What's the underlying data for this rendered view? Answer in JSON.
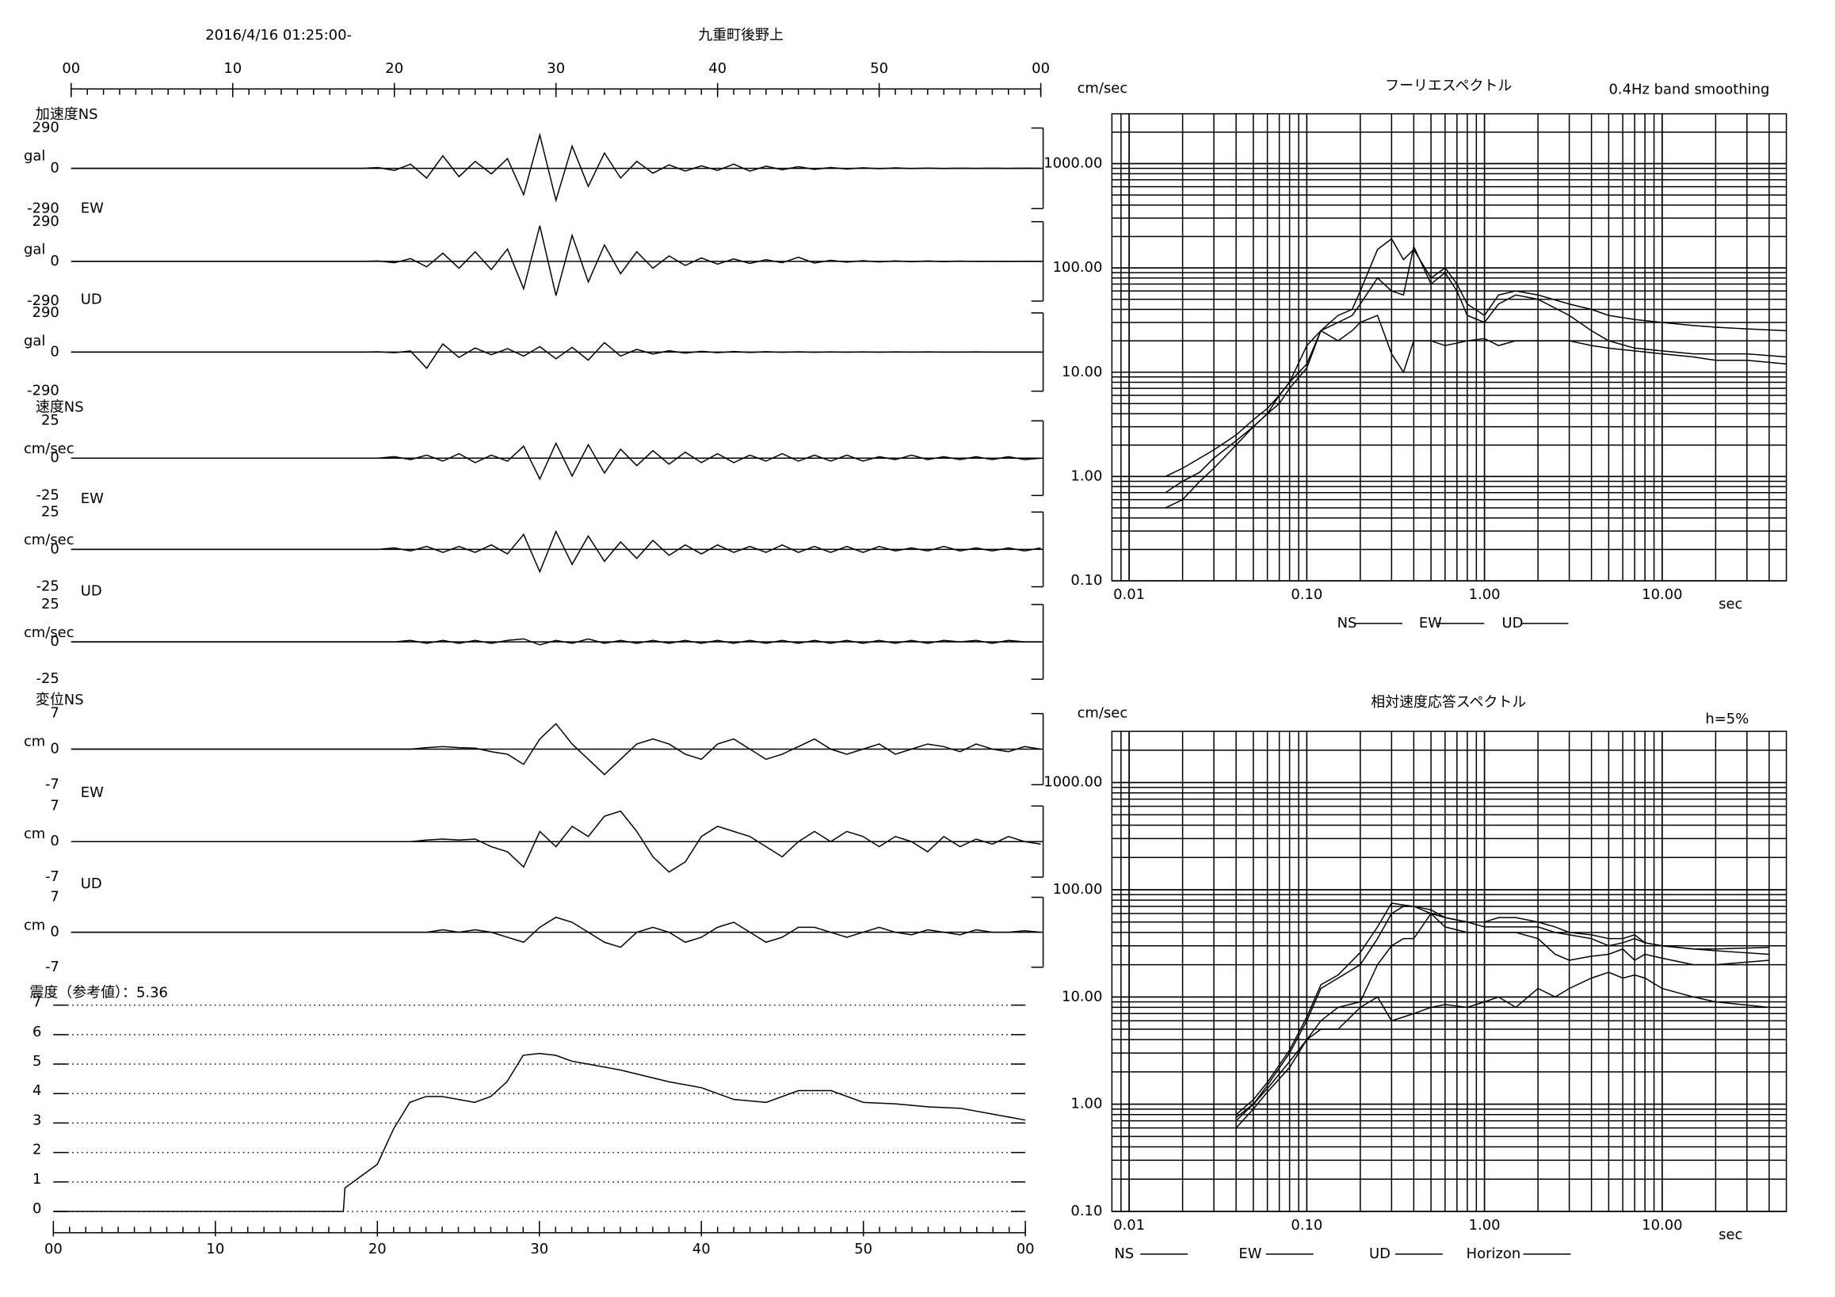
{
  "chart_data": [
    {
      "type": "waveform",
      "title": "九重町後野上",
      "start_time": "2016/4/16 01:25:00-",
      "xlim": [
        0,
        60
      ],
      "xticks": [
        {
          "value": 0,
          "label": "00"
        },
        10,
        20,
        30,
        40,
        50,
        {
          "value": 60,
          "label": "00"
        }
      ],
      "x": [
        0,
        18,
        19,
        20,
        21,
        22,
        23,
        24,
        25,
        26,
        27,
        28,
        29,
        30,
        31,
        32,
        33,
        34,
        35,
        36,
        37,
        38,
        39,
        40,
        41,
        42,
        43,
        44,
        45,
        46,
        47,
        48,
        49,
        50,
        51,
        52,
        53,
        54,
        55,
        56,
        57,
        58,
        59,
        60
      ],
      "traces": [
        {
          "label": "加速度NS",
          "unit": "gal",
          "ylim": [
            -290,
            290
          ],
          "yticks": [
            290,
            0,
            -290
          ],
          "values": [
            0,
            0,
            5,
            -15,
            30,
            -70,
            90,
            -60,
            50,
            -40,
            70,
            -190,
            240,
            -230,
            160,
            -130,
            110,
            -70,
            50,
            -35,
            25,
            -20,
            18,
            -15,
            30,
            -20,
            15,
            -10,
            12,
            -8,
            6,
            -5,
            4,
            -3,
            3,
            -2,
            2,
            -2,
            1,
            -1,
            1,
            -1,
            1,
            0
          ]
        },
        {
          "label": "EW",
          "unit": "gal",
          "ylim": [
            -290,
            290
          ],
          "yticks": [
            290,
            0,
            -290
          ],
          "values": [
            0,
            0,
            3,
            -10,
            20,
            -40,
            60,
            -50,
            70,
            -60,
            90,
            -200,
            260,
            -250,
            190,
            -150,
            120,
            -90,
            70,
            -50,
            40,
            -30,
            25,
            -20,
            18,
            -15,
            12,
            -10,
            30,
            -12,
            8,
            -6,
            5,
            -4,
            4,
            -3,
            3,
            -2,
            2,
            -1,
            1,
            -1,
            1,
            0
          ]
        },
        {
          "label": "UD",
          "unit": "gal",
          "ylim": [
            -290,
            290
          ],
          "yticks": [
            290,
            0,
            -290
          ],
          "values": [
            0,
            0,
            2,
            -5,
            8,
            -120,
            60,
            -40,
            30,
            -20,
            25,
            -30,
            40,
            -50,
            35,
            -60,
            70,
            -30,
            20,
            -15,
            10,
            -8,
            6,
            -5,
            4,
            -3,
            3,
            -2,
            2,
            -2,
            1,
            -1,
            1,
            -1,
            1,
            0,
            1,
            0,
            0,
            1,
            0,
            0,
            0,
            0
          ]
        },
        {
          "label": "速度NS",
          "unit": "cm/sec",
          "ylim": [
            -25,
            25
          ],
          "yticks": [
            25,
            0,
            -25
          ],
          "values": [
            0,
            0,
            0,
            1,
            -1,
            2,
            -2,
            3,
            -3,
            2,
            -2,
            8,
            -14,
            10,
            -12,
            9,
            -10,
            6,
            -5,
            5,
            -4,
            4,
            -3,
            3,
            -3,
            2,
            -2,
            3,
            -2,
            2,
            -2,
            2,
            -2,
            1,
            -1,
            2,
            -1,
            1,
            -1,
            1,
            -1,
            1,
            -1,
            0
          ]
        },
        {
          "label": "EW",
          "unit": "cm/sec",
          "ylim": [
            -25,
            25
          ],
          "yticks": [
            25,
            0,
            -25
          ],
          "values": [
            0,
            0,
            0,
            1,
            -1,
            2,
            -2,
            2,
            -2,
            3,
            -3,
            10,
            -15,
            12,
            -10,
            9,
            -8,
            5,
            -6,
            6,
            -4,
            3,
            -3,
            3,
            -2,
            2,
            -2,
            3,
            -2,
            2,
            -2,
            2,
            -2,
            2,
            -1,
            1,
            -1,
            2,
            -1,
            1,
            -1,
            1,
            -1,
            1
          ]
        },
        {
          "label": "UD",
          "unit": "cm/sec",
          "ylim": [
            -25,
            25
          ],
          "yticks": [
            25,
            0,
            -25
          ],
          "values": [
            0,
            0,
            0,
            0,
            1,
            -1,
            1,
            -1,
            1,
            -1,
            1,
            2,
            -2,
            1,
            -1,
            2,
            -1,
            1,
            -1,
            1,
            -1,
            1,
            -1,
            1,
            -1,
            1,
            -1,
            1,
            -1,
            1,
            -1,
            1,
            -1,
            1,
            -1,
            1,
            -1,
            1,
            0,
            1,
            -1,
            1,
            0,
            0
          ]
        },
        {
          "label": "変位NS",
          "unit": "cm",
          "ylim": [
            -7,
            7
          ],
          "yticks": [
            7,
            0,
            -7
          ],
          "values": [
            0,
            0,
            0,
            0,
            0,
            0.3,
            0.5,
            0.3,
            0.2,
            -0.5,
            -1,
            -3,
            2,
            5,
            1,
            -2,
            -5,
            -2,
            1,
            2,
            1,
            -1,
            -2,
            1,
            2,
            0,
            -2,
            -1,
            0.5,
            2,
            0,
            -1,
            0,
            1,
            -1,
            0,
            1,
            0.5,
            -0.5,
            1,
            0,
            -0.5,
            0.5,
            0
          ]
        },
        {
          "label": "EW",
          "unit": "cm",
          "ylim": [
            -7,
            7
          ],
          "yticks": [
            7,
            0,
            -7
          ],
          "values": [
            0,
            0,
            0,
            0,
            0,
            0.3,
            0.5,
            0.3,
            0.5,
            -1,
            -2,
            -5,
            2,
            -1,
            3,
            1,
            5,
            6,
            2,
            -3,
            -6,
            -4,
            1,
            3,
            2,
            1,
            -1,
            -3,
            0,
            2,
            0,
            2,
            1,
            -1,
            1,
            0,
            -2,
            1,
            -1,
            0.5,
            -0.5,
            1,
            0,
            -0.5
          ]
        },
        {
          "label": "UD",
          "unit": "cm",
          "ylim": [
            -7,
            7
          ],
          "yticks": [
            7,
            0,
            -7
          ],
          "values": [
            0,
            0,
            0,
            0,
            0,
            0,
            0.5,
            0,
            0.5,
            0,
            -1,
            -2,
            1,
            3,
            2,
            0,
            -2,
            -3,
            0,
            1,
            0,
            -2,
            -1,
            1,
            2,
            0,
            -2,
            -1,
            1,
            1,
            0,
            -1,
            0,
            1,
            0,
            -0.5,
            0.5,
            0,
            -0.5,
            0.5,
            0,
            0,
            0.3,
            0
          ]
        }
      ]
    },
    {
      "type": "line",
      "title": "震度（参考値）：5.36",
      "color": "#000000",
      "xlim": [
        0,
        60
      ],
      "xticks": [
        {
          "value": 0,
          "label": "00"
        },
        10,
        20,
        30,
        40,
        50,
        {
          "value": 60,
          "label": "00"
        }
      ],
      "ylim": [
        0,
        7
      ],
      "yticks": [
        0,
        1,
        2,
        3,
        4,
        5,
        6,
        7
      ],
      "grid": true,
      "x": [
        0,
        17.9,
        18,
        19,
        20,
        21,
        22,
        23,
        24,
        25,
        26,
        27,
        28,
        29,
        30,
        31,
        32,
        33,
        35,
        38,
        40,
        42,
        44,
        46,
        48,
        50,
        52,
        54,
        56,
        58,
        60
      ],
      "values": [
        0,
        0,
        0.8,
        1.2,
        1.6,
        2.8,
        3.7,
        3.9,
        3.9,
        3.8,
        3.7,
        3.9,
        4.4,
        5.3,
        5.36,
        5.3,
        5.1,
        5.0,
        4.8,
        4.4,
        4.2,
        3.8,
        3.7,
        4.1,
        4.1,
        3.7,
        3.65,
        3.55,
        3.5,
        3.3,
        3.1
      ]
    },
    {
      "type": "loglog",
      "title": "フーリエスペクトル",
      "subtitle": "0.4Hz band smoothing",
      "ylabel": "cm/sec",
      "xlabel": "sec",
      "xlim": [
        0.008,
        50
      ],
      "ylim": [
        0.1,
        3000
      ],
      "minor_grid": true,
      "xticks": [
        {
          "value": 0.01,
          "label": "0.01"
        },
        {
          "value": 0.1,
          "label": "0.10"
        },
        {
          "value": 1,
          "label": "1.00"
        },
        {
          "value": 10,
          "label": "10.00"
        }
      ],
      "yticks": [
        {
          "value": 0.1,
          "label": "0.10"
        },
        {
          "value": 1,
          "label": "1.00"
        },
        {
          "value": 10,
          "label": "10.00"
        },
        {
          "value": 100,
          "label": "100.00"
        },
        {
          "value": 1000,
          "label": "1000.00"
        }
      ],
      "x": [
        0.016,
        0.02,
        0.025,
        0.03,
        0.04,
        0.05,
        0.06,
        0.07,
        0.08,
        0.1,
        0.12,
        0.15,
        0.18,
        0.2,
        0.25,
        0.3,
        0.35,
        0.4,
        0.5,
        0.6,
        0.7,
        0.8,
        1,
        1.2,
        1.5,
        2,
        3,
        4,
        5,
        7,
        10,
        15,
        20,
        30,
        50
      ],
      "series": [
        {
          "name": "NS",
          "color": "#ff0000",
          "values": [
            1.0,
            1.2,
            1.5,
            1.8,
            2.5,
            3.5,
            4.5,
            6,
            8,
            12,
            25,
            30,
            35,
            45,
            80,
            60,
            55,
            160,
            70,
            90,
            60,
            35,
            30,
            45,
            55,
            50,
            35,
            25,
            20,
            17,
            16,
            15,
            15,
            15,
            14
          ]
        },
        {
          "name": "EW",
          "color": "#00b400",
          "values": [
            0.5,
            0.6,
            0.9,
            1.2,
            2,
            3,
            4,
            5,
            7,
            11,
            25,
            35,
            40,
            60,
            150,
            190,
            120,
            150,
            80,
            100,
            70,
            45,
            35,
            55,
            60,
            55,
            45,
            40,
            35,
            32,
            30,
            28,
            27,
            26,
            25
          ]
        },
        {
          "name": "UD",
          "color": "#0a7cff",
          "values": [
            0.7,
            0.9,
            1.1,
            1.5,
            2.2,
            3,
            4,
            6,
            8,
            18,
            25,
            20,
            25,
            30,
            35,
            15,
            10,
            20,
            20,
            18,
            19,
            20,
            21,
            18,
            20,
            20,
            20,
            18,
            17,
            16,
            15,
            14,
            13,
            13,
            12
          ]
        }
      ]
    },
    {
      "type": "loglog",
      "title": "相対速度応答スペクトル",
      "subtitle": "h=5%",
      "ylabel": "cm/sec",
      "xlabel": "sec",
      "xlim": [
        0.008,
        50
      ],
      "ylim": [
        0.1,
        3000
      ],
      "minor_grid": true,
      "xticks": [
        {
          "value": 0.01,
          "label": "0.01"
        },
        {
          "value": 0.1,
          "label": "0.10"
        },
        {
          "value": 1,
          "label": "1.00"
        },
        {
          "value": 10,
          "label": "10.00"
        }
      ],
      "yticks": [
        {
          "value": 0.1,
          "label": "0.10"
        },
        {
          "value": 1,
          "label": "1.00"
        },
        {
          "value": 10,
          "label": "10.00"
        },
        {
          "value": 100,
          "label": "100.00"
        },
        {
          "value": 1000,
          "label": "1000.00"
        }
      ],
      "x": [
        0.04,
        0.05,
        0.06,
        0.08,
        0.1,
        0.12,
        0.15,
        0.2,
        0.25,
        0.3,
        0.35,
        0.4,
        0.5,
        0.6,
        0.8,
        1,
        1.2,
        1.5,
        2,
        2.5,
        3,
        4,
        5,
        6,
        7,
        8,
        10,
        15,
        20,
        40
      ],
      "series": [
        {
          "name": "NS",
          "color": "#ff0000",
          "values": [
            0.75,
            1.0,
            1.4,
            2.5,
            4,
            6,
            8,
            9,
            20,
            30,
            35,
            35,
            60,
            45,
            40,
            40,
            40,
            40,
            35,
            25,
            22,
            24,
            25,
            28,
            22,
            25,
            23,
            20,
            20,
            22
          ]
        },
        {
          "name": "EW",
          "color": "#00b400",
          "values": [
            0.7,
            1.0,
            1.5,
            3,
            6,
            12,
            15,
            20,
            35,
            60,
            70,
            70,
            60,
            55,
            50,
            45,
            45,
            45,
            45,
            40,
            38,
            35,
            30,
            32,
            35,
            32,
            30,
            28,
            27,
            25
          ]
        },
        {
          "name": "UD",
          "color": "#0a7cff",
          "values": [
            0.6,
            0.9,
            1.3,
            2.2,
            4,
            5,
            5,
            8,
            10,
            6,
            6.5,
            7,
            8,
            8.5,
            8,
            9,
            10,
            8,
            12,
            10,
            12,
            15,
            17,
            15,
            16,
            15,
            12,
            10,
            9,
            8
          ]
        },
        {
          "name": "Horizon",
          "color": "#000000",
          "values": [
            0.8,
            1.1,
            1.6,
            3.2,
            6.5,
            13,
            16,
            26,
            45,
            75,
            72,
            70,
            65,
            55,
            50,
            50,
            55,
            55,
            50,
            45,
            40,
            38,
            35,
            35,
            38,
            32,
            30,
            28,
            28,
            29
          ]
        }
      ]
    }
  ]
}
